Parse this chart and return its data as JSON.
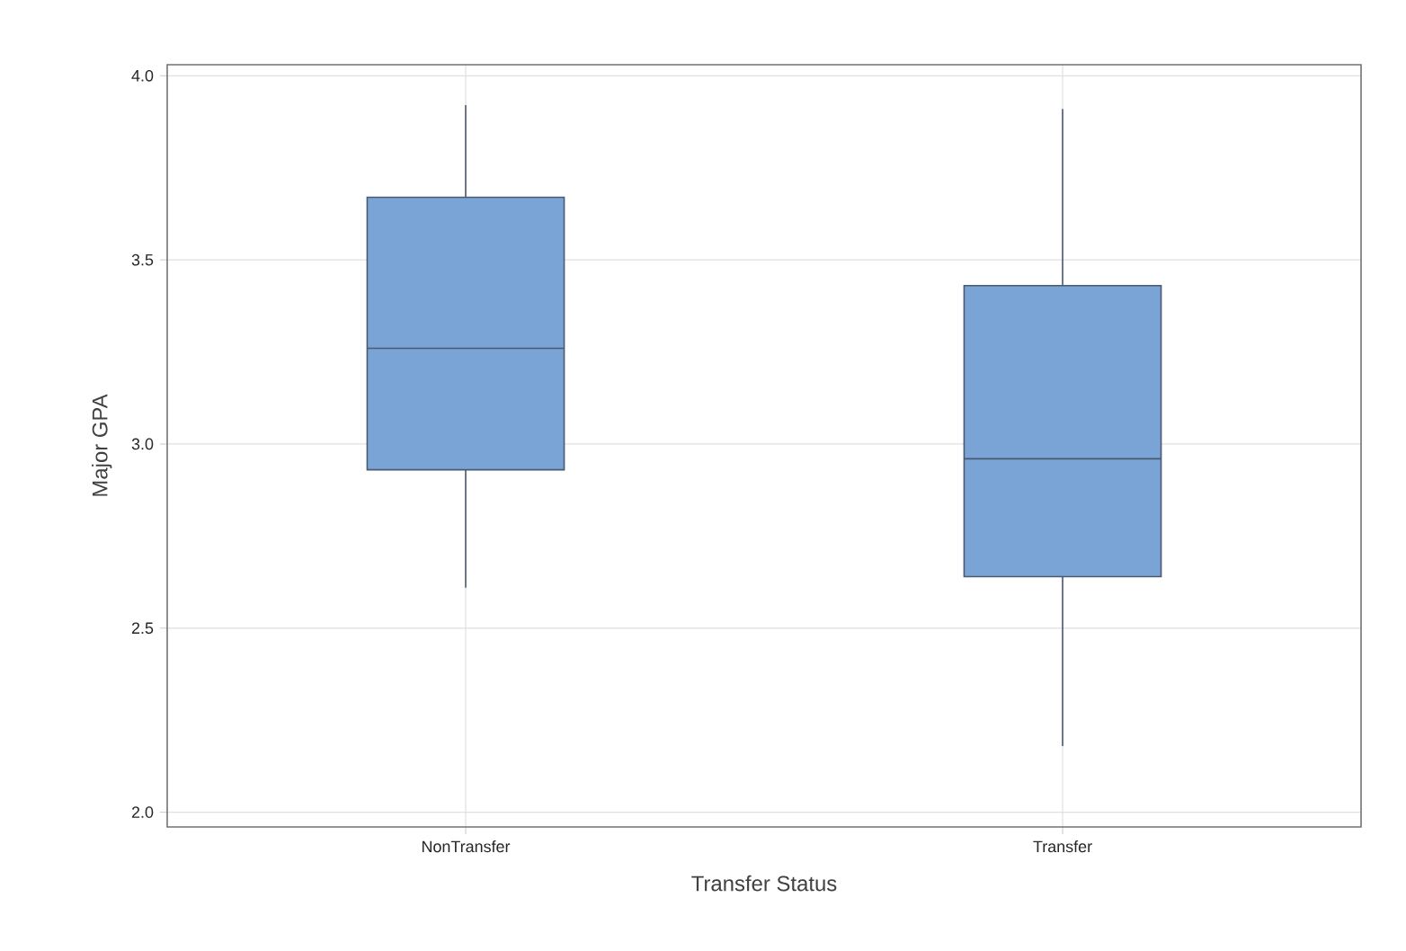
{
  "chart_data": {
    "type": "box",
    "xlabel": "Transfer Status",
    "ylabel": "Major GPA",
    "categories": [
      "NonTransfer",
      "Transfer"
    ],
    "color": "#7ba4d6",
    "boxes": [
      {
        "low": 2.61,
        "q1": 2.93,
        "median": 3.26,
        "q3": 3.67,
        "high": 3.92
      },
      {
        "low": 2.18,
        "q1": 2.64,
        "median": 2.96,
        "q3": 3.43,
        "high": 3.91
      }
    ],
    "ylim": [
      1.96,
      4.03
    ],
    "yticks": [
      {
        "value": 2,
        "label": "2.0"
      },
      {
        "value": 2.5,
        "label": "2.5"
      },
      {
        "value": 3,
        "label": "3.0"
      },
      {
        "value": 3.5,
        "label": "3.5"
      },
      {
        "value": 4,
        "label": "4.0"
      }
    ],
    "grid": true
  }
}
